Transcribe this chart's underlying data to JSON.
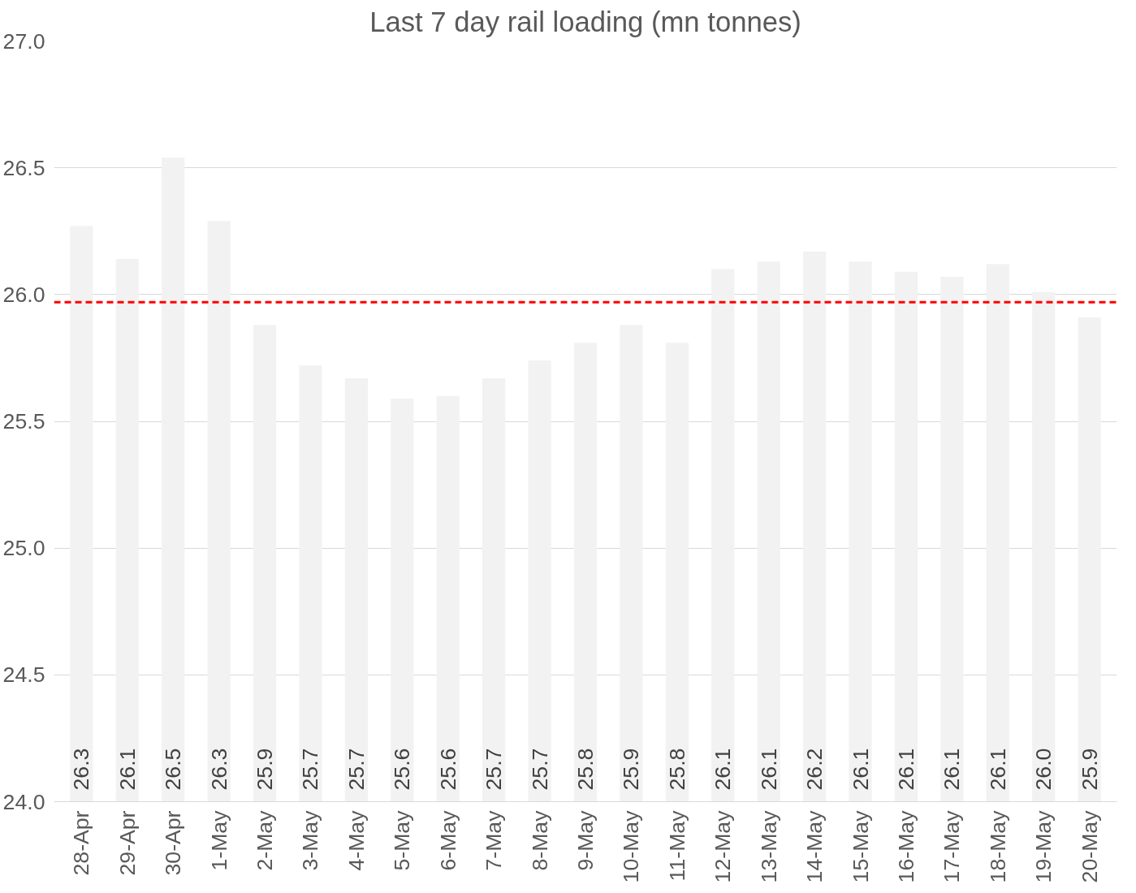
{
  "chart_data": {
    "type": "bar",
    "title": "Last 7 day rail loading (mn tonnes)",
    "categories": [
      "28-Apr",
      "29-Apr",
      "30-Apr",
      "1-May",
      "2-May",
      "3-May",
      "4-May",
      "5-May",
      "6-May",
      "7-May",
      "8-May",
      "9-May",
      "10-May",
      "11-May",
      "12-May",
      "13-May",
      "14-May",
      "15-May",
      "16-May",
      "17-May",
      "18-May",
      "19-May",
      "20-May"
    ],
    "values": [
      26.27,
      26.14,
      26.54,
      26.29,
      25.88,
      25.72,
      25.67,
      25.59,
      25.6,
      25.67,
      25.74,
      25.81,
      25.88,
      25.81,
      26.1,
      26.13,
      26.17,
      26.13,
      26.09,
      26.07,
      26.12,
      26.01,
      25.91
    ],
    "value_labels": [
      "26.3",
      "26.1",
      "26.5",
      "26.3",
      "25.9",
      "25.7",
      "25.7",
      "25.6",
      "25.6",
      "25.7",
      "25.7",
      "25.8",
      "25.9",
      "25.8",
      "26.1",
      "26.1",
      "26.2",
      "26.1",
      "26.1",
      "26.1",
      "26.1",
      "26.0",
      "25.9"
    ],
    "color": "#f2f2f2",
    "ylim": [
      24.0,
      27.0
    ],
    "yticks": [
      {
        "value": 24,
        "label": "24.0"
      },
      {
        "value": 24.5,
        "label": "24.5"
      },
      {
        "value": 25,
        "label": "25.0"
      },
      {
        "value": 25.5,
        "label": "25.5"
      },
      {
        "value": 26,
        "label": "26.0"
      },
      {
        "value": 26.5,
        "label": "26.5"
      },
      {
        "value": 27,
        "label": "27.0"
      }
    ],
    "grid": "y",
    "ref_lines": [
      {
        "axis": "y",
        "value": 25.97,
        "color": "#ff0000",
        "line_style": "dashed"
      }
    ]
  }
}
